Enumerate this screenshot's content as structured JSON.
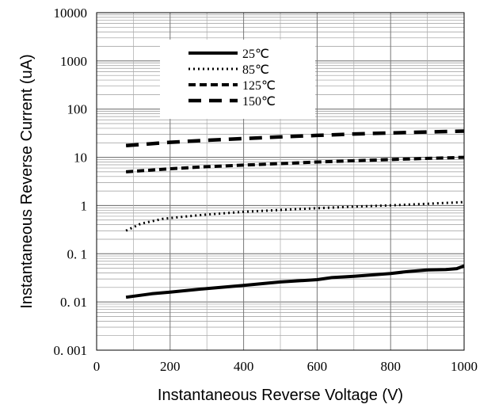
{
  "chart_data": {
    "type": "line",
    "title": "",
    "xlabel": "Instantaneous Reverse Voltage (V)",
    "ylabel": "Instantaneous Reverse Current (uA)",
    "xlim": [
      0,
      1000
    ],
    "ylim": [
      0.001,
      10000
    ],
    "yscale": "log",
    "grid": true,
    "legend_position": "top-left",
    "x_ticks": [
      0,
      200,
      400,
      600,
      800,
      1000
    ],
    "x_tick_labels": [
      "0",
      "200",
      "400",
      "600",
      "800",
      "1000"
    ],
    "y_ticks": [
      0.001,
      0.01,
      0.1,
      1,
      10,
      100,
      1000,
      10000
    ],
    "y_tick_labels": [
      "0. 001",
      "0. 01",
      "0. 1",
      "1",
      "10",
      "100",
      "1000",
      "10000"
    ],
    "series": [
      {
        "name": "25℃",
        "style": "solid",
        "x": [
          80,
          150,
          200,
          300,
          400,
          500,
          600,
          640,
          700,
          800,
          850,
          900,
          950,
          980,
          1000
        ],
        "y": [
          0.0125,
          0.0148,
          0.016,
          0.019,
          0.022,
          0.026,
          0.029,
          0.032,
          0.034,
          0.039,
          0.043,
          0.046,
          0.047,
          0.049,
          0.056
        ]
      },
      {
        "name": "85℃",
        "style": "dotted",
        "x": [
          80,
          120,
          180,
          250,
          300,
          400,
          500,
          600,
          700,
          800,
          900,
          1000
        ],
        "y": [
          0.3,
          0.42,
          0.53,
          0.6,
          0.65,
          0.74,
          0.81,
          0.88,
          0.95,
          1.01,
          1.09,
          1.18
        ]
      },
      {
        "name": "125℃",
        "style": "dashed",
        "x": [
          80,
          200,
          300,
          400,
          500,
          600,
          700,
          800,
          900,
          1000
        ],
        "y": [
          5.0,
          5.8,
          6.4,
          6.9,
          7.4,
          8.0,
          8.5,
          9.0,
          9.5,
          10.0
        ]
      },
      {
        "name": "150℃",
        "style": "long-dashed",
        "x": [
          80,
          200,
          300,
          400,
          500,
          600,
          700,
          800,
          900,
          1000
        ],
        "y": [
          17.5,
          20.5,
          22.5,
          24.5,
          26.5,
          28.5,
          30.5,
          32.0,
          33.5,
          35.0
        ]
      }
    ]
  }
}
